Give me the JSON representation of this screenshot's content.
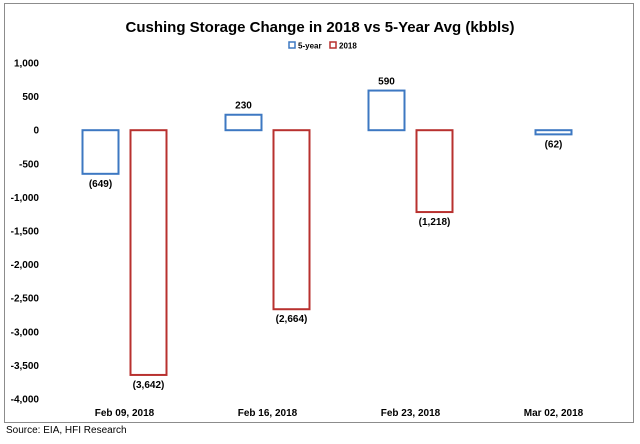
{
  "source": "Source: EIA, HFI Research",
  "chart_data": {
    "type": "bar",
    "title": "Cushing Storage Change in 2018 vs 5-Year Avg (kbbls)",
    "categories": [
      "Feb 09, 2018",
      "Feb 16, 2018",
      "Feb 23, 2018",
      "Mar 02, 2018"
    ],
    "series": [
      {
        "name": "5-year",
        "color": "#3d78c2",
        "values": [
          -649,
          230,
          590,
          -62
        ],
        "data_labels": [
          "(649)",
          "230",
          "590",
          "(62)"
        ]
      },
      {
        "name": "2018",
        "color": "#b8312f",
        "values": [
          -3642,
          -2664,
          -1218,
          null
        ],
        "data_labels": [
          "(3,642)",
          "(2,664)",
          "(1,218)",
          ""
        ]
      }
    ],
    "ylim": [
      -4000,
      1000
    ],
    "yticks": [
      1000,
      500,
      0,
      -500,
      -1000,
      -1500,
      -2000,
      -2500,
      -3000,
      -3500,
      -4000
    ],
    "ytick_labels": [
      "1,000",
      "500",
      "0",
      "-500",
      "-1,000",
      "-1,500",
      "-2,000",
      "-2,500",
      "-3,000",
      "-3,500",
      "-4,000"
    ],
    "legend_position": "top-center",
    "bar_style": "outlined",
    "grid": false,
    "xlabel": "",
    "ylabel": ""
  }
}
